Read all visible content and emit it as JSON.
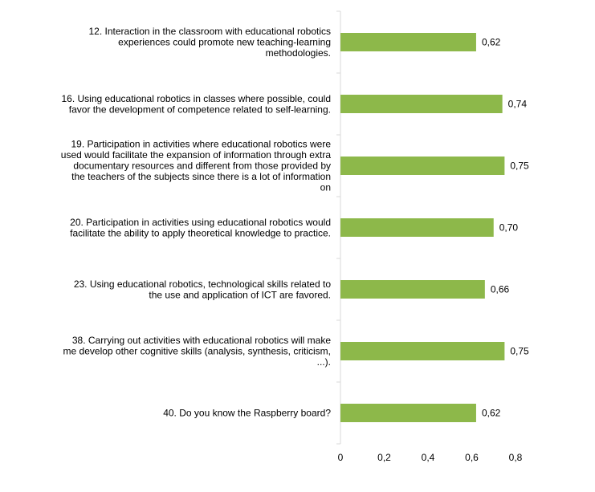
{
  "chart_data": {
    "type": "bar",
    "orientation": "horizontal",
    "categories": [
      [
        "12. Interaction in the classroom with educational robotics",
        "experiences could promote new teaching-learning",
        "methodologies."
      ],
      [
        "16. Using educational robotics in classes where possible, could",
        "favor the development of competence related to self-learning."
      ],
      [
        "19. Participation in activities where educational robotics were",
        "used would facilitate the expansion of information through extra",
        "documentary resources and different from those provided by",
        "the teachers of the subjects since there is a lot of information",
        "on"
      ],
      [
        "20. Participation in activities using educational robotics would",
        "facilitate the ability to apply theoretical knowledge to practice."
      ],
      [
        "23. Using educational robotics, technological skills related to",
        "the use and application of ICT are favored."
      ],
      [
        "38. Carrying out activities with educational robotics will make",
        "me develop other cognitive skills (analysis, synthesis, criticism,",
        "...)."
      ],
      [
        "40. Do you know the Raspberry board?"
      ]
    ],
    "values": [
      0.62,
      0.74,
      0.75,
      0.7,
      0.66,
      0.75,
      0.62
    ],
    "data_labels": [
      "0,62",
      "0,74",
      "0,75",
      "0,70",
      "0,66",
      "0,75",
      "0,62"
    ],
    "xlim": [
      0,
      0.8
    ],
    "xticks": [
      0,
      0.2,
      0.4,
      0.6,
      0.8
    ],
    "xtick_labels": [
      "0",
      "0,2",
      "0,4",
      "0,6",
      "0,8"
    ],
    "bar_color": "#8DB84A",
    "axis_color": "#D9D9D9",
    "grid": false,
    "legend": "none",
    "title": "",
    "xlabel": "",
    "ylabel": ""
  }
}
